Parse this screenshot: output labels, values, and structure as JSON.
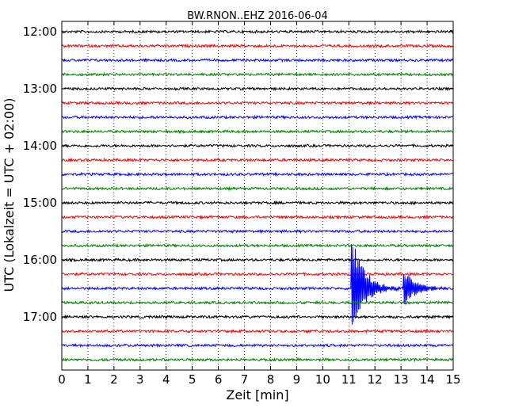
{
  "chart_data": {
    "type": "line",
    "title": "BW.RNON..EHZ 2016-06-04",
    "xlabel": "Zeit  [min]",
    "ylabel": "UTC (Lokalzeit = UTC + 02:00)",
    "xlim": [
      0,
      15
    ],
    "x_ticks": [
      "0",
      "1",
      "2",
      "3",
      "4",
      "5",
      "6",
      "7",
      "8",
      "9",
      "10",
      "11",
      "12",
      "13",
      "14",
      "15"
    ],
    "y_ticks": [
      "12:00",
      "13:00",
      "14:00",
      "15:00",
      "16:00",
      "17:00"
    ],
    "trace_interval_min": 15,
    "grid": "vertical dotted",
    "colors": [
      "#000000",
      "#ff0000",
      "#0000ff",
      "#008000"
    ],
    "series": [
      {
        "start": "12:00",
        "color": "#000000"
      },
      {
        "start": "12:15",
        "color": "#ff0000"
      },
      {
        "start": "12:30",
        "color": "#0000ff"
      },
      {
        "start": "12:45",
        "color": "#008000"
      },
      {
        "start": "13:00",
        "color": "#000000"
      },
      {
        "start": "13:15",
        "color": "#ff0000"
      },
      {
        "start": "13:30",
        "color": "#0000ff"
      },
      {
        "start": "13:45",
        "color": "#008000"
      },
      {
        "start": "14:00",
        "color": "#000000"
      },
      {
        "start": "14:15",
        "color": "#ff0000"
      },
      {
        "start": "14:30",
        "color": "#0000ff"
      },
      {
        "start": "14:45",
        "color": "#008000"
      },
      {
        "start": "15:00",
        "color": "#000000"
      },
      {
        "start": "15:15",
        "color": "#ff0000"
      },
      {
        "start": "15:30",
        "color": "#0000ff"
      },
      {
        "start": "15:45",
        "color": "#008000"
      },
      {
        "start": "16:00",
        "color": "#000000"
      },
      {
        "start": "16:15",
        "color": "#ff0000"
      },
      {
        "start": "16:30",
        "color": "#0000ff"
      },
      {
        "start": "16:45",
        "color": "#008000"
      },
      {
        "start": "17:00",
        "color": "#000000"
      },
      {
        "start": "17:15",
        "color": "#ff0000"
      },
      {
        "start": "17:30",
        "color": "#0000ff"
      },
      {
        "start": "17:45",
        "color": "#008000"
      }
    ],
    "events": [
      {
        "trace_start": "16:30",
        "onset_min": 11.1,
        "peak_up": 1.0,
        "peak_down": 0.85,
        "coda_min": 2.3
      },
      {
        "trace_start": "16:30",
        "onset_min": 13.1,
        "peak_up": 0.32,
        "peak_down": 0.32,
        "coda_min": 1.8
      }
    ]
  }
}
